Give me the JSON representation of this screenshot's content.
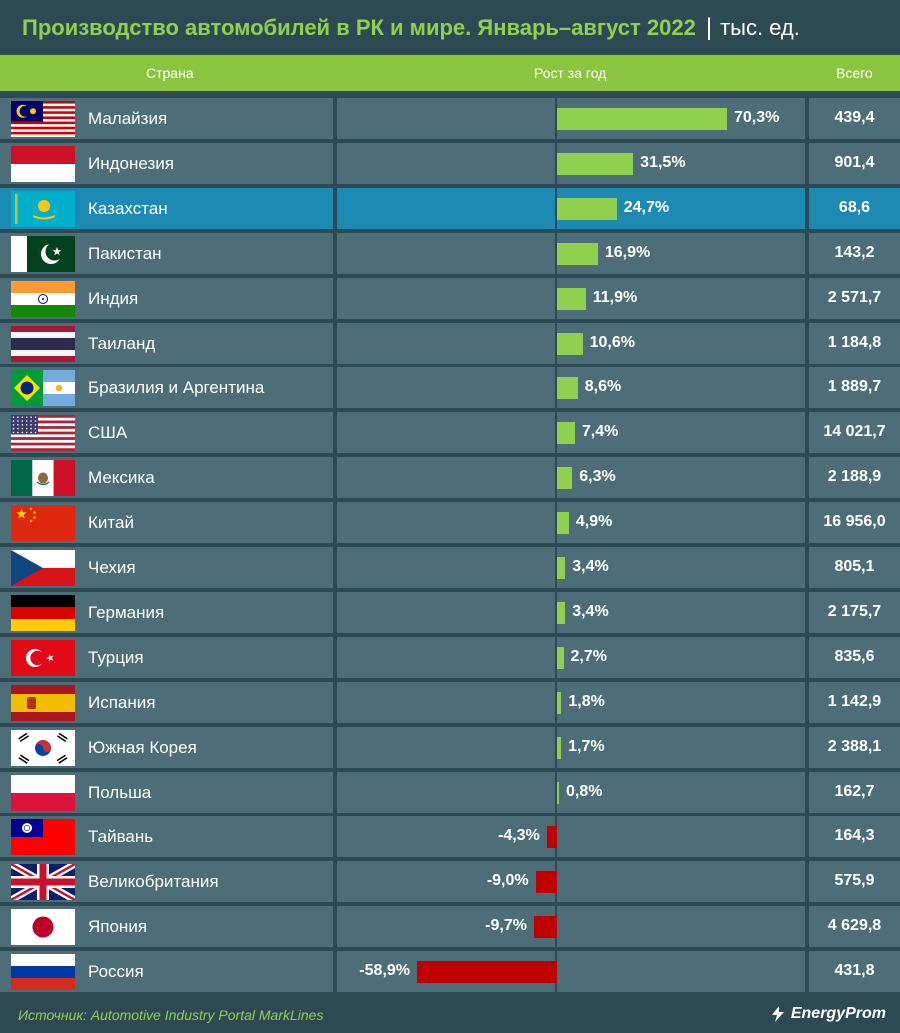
{
  "title": "Производство автомобилей в РК и мире. Январь–август 2022",
  "title_sep": "|",
  "unit": "тыс. ед.",
  "columns": {
    "country": "Страна",
    "growth": "Рост за год",
    "total": "Всего"
  },
  "colors": {
    "positive": "#8fd14f",
    "negative": "#c00000",
    "highlight": "#1c8ab2",
    "row": "#4d6e78",
    "header": "#8bc53f"
  },
  "footer": {
    "source": "Источник: Automotive Industry Portal MarkLines",
    "brand": "EnergyProm"
  },
  "chart_data": {
    "type": "bar",
    "title": "Производство автомобилей в РК и мире. Январь–август 2022",
    "unit": "тыс. ед.",
    "xlabel": "Рост за год",
    "highlight": "Казахстан",
    "rows": [
      {
        "country": "Малайзия",
        "growth": 70.3,
        "growth_label": "70,3%",
        "total": "439,4",
        "flag": "malaysia-flag"
      },
      {
        "country": "Индонезия",
        "growth": 31.5,
        "growth_label": "31,5%",
        "total": "901,4",
        "flag": "indonesia-flag"
      },
      {
        "country": "Казахстан",
        "growth": 24.7,
        "growth_label": "24,7%",
        "total": "68,6",
        "flag": "kazakhstan-flag"
      },
      {
        "country": "Пакистан",
        "growth": 16.9,
        "growth_label": "16,9%",
        "total": "143,2",
        "flag": "pakistan-flag"
      },
      {
        "country": "Индия",
        "growth": 11.9,
        "growth_label": "11,9%",
        "total": "2 571,7",
        "flag": "india-flag"
      },
      {
        "country": "Таиланд",
        "growth": 10.6,
        "growth_label": "10,6%",
        "total": "1 184,8",
        "flag": "thailand-flag"
      },
      {
        "country": "Бразилия и Аргентина",
        "growth": 8.6,
        "growth_label": "8,6%",
        "total": "1 889,7",
        "flag": "brazil-argentina-flag"
      },
      {
        "country": "США",
        "growth": 7.4,
        "growth_label": "7,4%",
        "total": "14 021,7",
        "flag": "usa-flag"
      },
      {
        "country": "Мексика",
        "growth": 6.3,
        "growth_label": "6,3%",
        "total": "2 188,9",
        "flag": "mexico-flag"
      },
      {
        "country": "Китай",
        "growth": 4.9,
        "growth_label": "4,9%",
        "total": "16 956,0",
        "flag": "china-flag"
      },
      {
        "country": "Чехия",
        "growth": 3.4,
        "growth_label": "3,4%",
        "total": "805,1",
        "flag": "czechia-flag"
      },
      {
        "country": "Германия",
        "growth": 3.4,
        "growth_label": "3,4%",
        "total": "2 175,7",
        "flag": "germany-flag"
      },
      {
        "country": "Турция",
        "growth": 2.7,
        "growth_label": "2,7%",
        "total": "835,6",
        "flag": "turkey-flag"
      },
      {
        "country": "Испания",
        "growth": 1.8,
        "growth_label": "1,8%",
        "total": "1 142,9",
        "flag": "spain-flag"
      },
      {
        "country": "Южная Корея",
        "growth": 1.7,
        "growth_label": "1,7%",
        "total": "2 388,1",
        "flag": "south-korea-flag"
      },
      {
        "country": "Польша",
        "growth": 0.8,
        "growth_label": "0,8%",
        "total": "162,7",
        "flag": "poland-flag"
      },
      {
        "country": "Тайвань",
        "growth": -4.3,
        "growth_label": "-4,3%",
        "total": "164,3",
        "flag": "taiwan-flag"
      },
      {
        "country": "Великобритания",
        "growth": -9.0,
        "growth_label": "-9,0%",
        "total": "575,9",
        "flag": "uk-flag"
      },
      {
        "country": "Япония",
        "growth": -9.7,
        "growth_label": "-9,7%",
        "total": "4 629,8",
        "flag": "japan-flag"
      },
      {
        "country": "Россия",
        "growth": -58.9,
        "growth_label": "-58,9%",
        "total": "431,8",
        "flag": "russia-flag"
      }
    ]
  }
}
